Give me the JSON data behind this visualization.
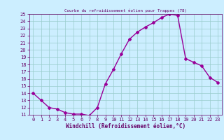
{
  "title": "Courbe du refroidissement éolien pour Trappes (78)",
  "xlabel": "Windchill (Refroidissement éolien,°C)",
  "x": [
    0,
    1,
    2,
    3,
    4,
    5,
    6,
    7,
    8,
    9,
    10,
    11,
    12,
    13,
    14,
    15,
    16,
    17,
    18,
    19,
    20,
    21,
    22,
    23
  ],
  "y": [
    14.0,
    13.0,
    12.0,
    11.8,
    11.3,
    11.1,
    11.1,
    10.9,
    12.0,
    15.3,
    17.3,
    19.5,
    21.5,
    22.5,
    23.2,
    23.8,
    24.5,
    25.0,
    24.8,
    18.8,
    18.3,
    17.8,
    16.2,
    15.5
  ],
  "line_color": "#990099",
  "marker": "D",
  "marker_size": 2,
  "bg_color": "#cceeff",
  "grid_color": "#99cccc",
  "axis_color": "#660066",
  "ylim": [
    11,
    25
  ],
  "xlim": [
    -0.5,
    23.5
  ],
  "yticks": [
    11,
    12,
    13,
    14,
    15,
    16,
    17,
    18,
    19,
    20,
    21,
    22,
    23,
    24,
    25
  ],
  "xticks": [
    0,
    1,
    2,
    3,
    4,
    5,
    6,
    7,
    8,
    9,
    10,
    11,
    12,
    13,
    14,
    15,
    16,
    17,
    18,
    19,
    20,
    21,
    22,
    23
  ],
  "tick_fontsize": 5,
  "xlabel_fontsize": 5.5,
  "line_width": 1.0
}
